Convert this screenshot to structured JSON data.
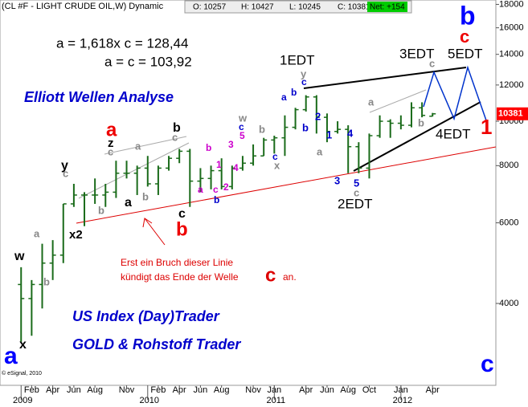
{
  "chart_data": {
    "type": "ohlc",
    "title": "(CL #F - LIGHT CRUDE OIL,W) Dynamic",
    "header": [
      {
        "text": "O: 10257"
      },
      {
        "text": "H: 10427"
      },
      {
        "text": "L: 10245"
      },
      {
        "text": "C: 10381"
      },
      {
        "text": "Net: +154",
        "color": "#00cc00"
      }
    ],
    "last_price": {
      "value": 10381,
      "color": "#ff0000"
    },
    "credit": "© eSignal, 2010",
    "log_scale": true,
    "color": "#1a6b1a",
    "x": [
      "2009-01",
      "2009-02",
      "2009-03",
      "2009-04",
      "2009-05",
      "2009-06",
      "2009-07",
      "2009-08",
      "2009-09",
      "2009-10",
      "2009-11",
      "2009-12",
      "2010-01",
      "2010-02",
      "2010-03",
      "2010-04",
      "2010-05",
      "2010-06",
      "2010-07",
      "2010-08",
      "2010-09",
      "2010-10",
      "2010-11",
      "2010-12",
      "2011-01",
      "2011-02",
      "2011-03",
      "2011-04",
      "2011-05",
      "2011-06",
      "2011-07",
      "2011-08",
      "2011-09",
      "2011-10",
      "2011-11",
      "2011-12",
      "2012-01",
      "2012-02",
      "2012-03",
      "2012-04"
    ],
    "open": [
      4400,
      4100,
      4400,
      4900,
      5100,
      6600,
      6900,
      6900,
      6900,
      7000,
      7700,
      7700,
      7900,
      7300,
      7900,
      8300,
      8600,
      7400,
      7500,
      7800,
      7200,
      7900,
      8100,
      8400,
      9100,
      9200,
      9700,
      10600,
      11300,
      10200,
      9500,
      9600,
      8800,
      7900,
      9300,
      10000,
      9900,
      9800,
      10700,
      10257
    ],
    "high": [
      4800,
      4500,
      5400,
      5500,
      6600,
      7300,
      7000,
      7500,
      7300,
      8200,
      8200,
      8000,
      8400,
      8000,
      8400,
      8700,
      8700,
      7900,
      8000,
      8300,
      8000,
      8400,
      8900,
      9200,
      9300,
      10300,
      10700,
      11400,
      11400,
      10400,
      10000,
      9800,
      9000,
      9400,
      10300,
      10100,
      10300,
      11000,
      11000,
      10427
    ],
    "low": [
      3300,
      3400,
      3900,
      4500,
      4900,
      6500,
      5900,
      6600,
      6500,
      6800,
      7500,
      6900,
      7200,
      6900,
      7800,
      8100,
      6500,
      7000,
      7100,
      7100,
      7100,
      7800,
      8000,
      8400,
      8500,
      8400,
      9600,
      10500,
      9400,
      9000,
      9400,
      7700,
      7700,
      7500,
      9200,
      9200,
      9600,
      9700,
      10200,
      10245
    ],
    "close": [
      4100,
      4400,
      4900,
      5100,
      6600,
      6900,
      6900,
      6900,
      7000,
      7700,
      7700,
      7900,
      7300,
      7900,
      8300,
      8600,
      7400,
      7500,
      7800,
      7200,
      7900,
      8100,
      8400,
      9100,
      9200,
      9700,
      10600,
      11300,
      10200,
      9500,
      9600,
      8800,
      7900,
      9300,
      10000,
      9900,
      9800,
      10700,
      10300,
      10381
    ],
    "xlim": [
      "2008-11",
      "2012-10"
    ],
    "ylim": [
      2650,
      18400
    ],
    "yticks": [
      4000,
      6000,
      8000,
      10000,
      12000,
      14000,
      16000,
      18000
    ],
    "xticks": [
      {
        "value": "2009-02",
        "label": "Feb"
      },
      {
        "value": "2009-04",
        "label": "Apr"
      },
      {
        "value": "2009-06",
        "label": "Jun"
      },
      {
        "value": "2009-08",
        "label": "Aug"
      },
      {
        "value": "2009-11",
        "label": "Nov"
      },
      {
        "value": "2010-02",
        "label": "Feb"
      },
      {
        "value": "2010-04",
        "label": "Apr"
      },
      {
        "value": "2010-06",
        "label": "Jun"
      },
      {
        "value": "2010-08",
        "label": "Aug"
      },
      {
        "value": "2010-11",
        "label": "Nov"
      },
      {
        "value": "2011-01",
        "label": "Jan"
      },
      {
        "value": "2011-04",
        "label": "Apr"
      },
      {
        "value": "2011-06",
        "label": "Jun"
      },
      {
        "value": "2011-08",
        "label": "Aug"
      },
      {
        "value": "2011-10",
        "label": "Oct"
      },
      {
        "value": "2012-01",
        "label": "Jan"
      },
      {
        "value": "2012-04",
        "label": "Apr"
      }
    ],
    "year_ticks": [
      {
        "value": "2009-01",
        "label": "2009"
      },
      {
        "value": "2010-01",
        "label": "2010"
      },
      {
        "value": "2011-01",
        "label": "2011"
      },
      {
        "value": "2012-01",
        "label": "2012"
      }
    ],
    "annotations": [
      {
        "text": "a = 1,618x c = 128,44",
        "color": "#000000"
      },
      {
        "text": "a = c = 103,92",
        "color": "#000000"
      },
      {
        "text": "Elliott Wellen Analyse",
        "color": "#0000cc"
      },
      {
        "text": "US Index (Day)Trader",
        "color": "#0000cc"
      },
      {
        "text": "GOLD & Rohstoff Trader",
        "color": "#0000cc"
      },
      {
        "text": "Erst ein Bruch dieser Linie",
        "color": "#dd0000"
      },
      {
        "text": "kündigt das Ende der Welle",
        "color": "#dd0000"
      },
      {
        "text": "c",
        "color": "#dd0000"
      },
      {
        "text": "an.",
        "color": "#dd0000"
      },
      {
        "text": "1EDT",
        "color": "#000000"
      },
      {
        "text": "2EDT",
        "color": "#000000"
      },
      {
        "text": "3EDT",
        "color": "#000000"
      },
      {
        "text": "5EDT",
        "color": "#000000"
      },
      {
        "text": "4EDT",
        "color": "#000000"
      },
      {
        "text": "b",
        "color": "#0000ff"
      },
      {
        "text": "c",
        "color": "#ee0000"
      },
      {
        "text": "1",
        "color": "#ee0000"
      },
      {
        "text": "c",
        "color": "#0000ff"
      },
      {
        "text": "a",
        "color": "#0000ff"
      },
      {
        "text": "x",
        "color": "#000000"
      },
      {
        "text": "w",
        "color": "#000000"
      },
      {
        "text": "a",
        "color": "#888888"
      },
      {
        "text": "b",
        "color": "#888888"
      },
      {
        "text": "x2",
        "color": "#000000"
      },
      {
        "text": "y",
        "color": "#000000"
      },
      {
        "text": "c",
        "color": "#888888"
      },
      {
        "text": "a",
        "color": "#ee0000"
      },
      {
        "text": "z",
        "color": "#000000"
      },
      {
        "text": "c",
        "color": "#888888"
      },
      {
        "text": "b",
        "color": "#888888"
      },
      {
        "text": "a",
        "color": "#000000"
      },
      {
        "text": "b",
        "color": "#888888"
      },
      {
        "text": "a",
        "color": "#888888"
      },
      {
        "text": "b",
        "color": "#000000"
      },
      {
        "text": "c",
        "color": "#888888"
      },
      {
        "text": "c",
        "color": "#000000"
      },
      {
        "text": "b",
        "color": "#ee0000"
      },
      {
        "text": "b",
        "color": "#cc00cc"
      },
      {
        "text": "1",
        "color": "#cc00cc"
      },
      {
        "text": "a",
        "color": "#cc00cc"
      },
      {
        "text": "c",
        "color": "#cc00cc"
      },
      {
        "text": "2",
        "color": "#cc00cc"
      },
      {
        "text": "b",
        "color": "#0000cc"
      },
      {
        "text": "3",
        "color": "#cc00cc"
      },
      {
        "text": "4",
        "color": "#cc00cc"
      },
      {
        "text": "5",
        "color": "#cc00cc"
      },
      {
        "text": "c",
        "color": "#0000cc"
      },
      {
        "text": "w",
        "color": "#888888"
      },
      {
        "text": "b",
        "color": "#888888"
      },
      {
        "text": "c",
        "color": "#0000cc"
      },
      {
        "text": "x",
        "color": "#888888"
      },
      {
        "text": "a",
        "color": "#0000cc"
      },
      {
        "text": "b",
        "color": "#0000cc"
      },
      {
        "text": "y",
        "color": "#888888"
      },
      {
        "text": "c",
        "color": "#0000cc"
      },
      {
        "text": "b",
        "color": "#0000cc"
      },
      {
        "text": "2",
        "color": "#0000cc"
      },
      {
        "text": "1",
        "color": "#0000cc"
      },
      {
        "text": "a",
        "color": "#888888"
      },
      {
        "text": "4",
        "color": "#0000cc"
      },
      {
        "text": "3",
        "color": "#0000cc"
      },
      {
        "text": "5",
        "color": "#0000cc"
      },
      {
        "text": "c",
        "color": "#888888"
      },
      {
        "text": "a",
        "color": "#888888"
      },
      {
        "text": "b",
        "color": "#888888"
      },
      {
        "text": "c",
        "color": "#888888"
      }
    ]
  }
}
